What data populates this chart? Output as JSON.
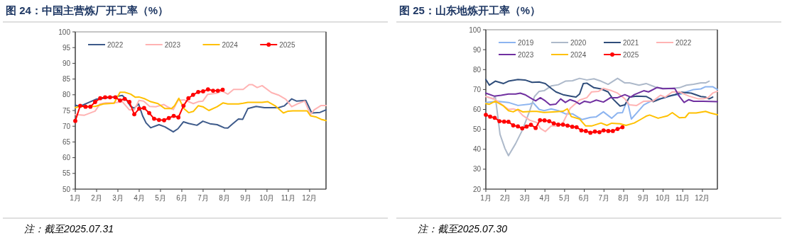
{
  "chart_data": [
    {
      "type": "line",
      "title": "图 24：中国主营炼厂开工率（%）",
      "legend": "top",
      "xlim": [
        1,
        12.77
      ],
      "ylim": [
        50,
        100
      ],
      "xticks": [
        {
          "value": 1,
          "label": "1月"
        },
        {
          "value": 2,
          "label": "2月"
        },
        {
          "value": 3,
          "label": "3月"
        },
        {
          "value": 4,
          "label": "4月"
        },
        {
          "value": 5,
          "label": "5月"
        },
        {
          "value": 6,
          "label": "6月"
        },
        {
          "value": 7,
          "label": "7月"
        },
        {
          "value": 8,
          "label": "8月"
        },
        {
          "value": 9,
          "label": "9月"
        },
        {
          "value": 10,
          "label": "10月"
        },
        {
          "value": 11,
          "label": "11月"
        },
        {
          "value": 12,
          "label": "12月"
        }
      ],
      "yticks": [
        50,
        55,
        60,
        65,
        70,
        75,
        80,
        85,
        90,
        95,
        100
      ],
      "annotations": [
        "注：截至2025.07.31"
      ],
      "series": [
        {
          "name": "2022",
          "color": "#3d5a8a",
          "x": [
            1.0,
            1.21,
            1.71,
            1.99,
            2.32,
            2.77,
            3.21,
            3.38,
            3.6,
            3.77,
            3.97,
            4.16,
            4.32,
            4.54,
            4.93,
            5.21,
            5.6,
            5.82,
            6.08,
            6.32,
            6.71,
            6.99,
            7.32,
            7.66,
            7.99,
            8.16,
            8.38,
            8.66,
            8.86,
            9.1,
            9.49,
            9.88,
            10.54,
            10.82,
            11.16,
            11.38,
            11.82,
            12.1,
            12.49,
            12.77
          ],
          "values": [
            76.7,
            76.3,
            77.8,
            78.6,
            78.9,
            79.3,
            79.8,
            78.6,
            76.3,
            75.7,
            77.1,
            73.3,
            71.1,
            69.5,
            70.5,
            69.8,
            68.2,
            69.2,
            71.4,
            70.9,
            70.3,
            71.6,
            70.8,
            70.5,
            69.5,
            69.4,
            70.7,
            72.3,
            72.2,
            75.6,
            76.3,
            75.9,
            75.9,
            76.5,
            78.7,
            78.0,
            78.2,
            74.2,
            74.4,
            75.2
          ]
        },
        {
          "name": "2023",
          "color": "#ffb3b3",
          "x": [
            1.0,
            1.43,
            1.93,
            2.16,
            2.43,
            2.82,
            3.21,
            3.54,
            3.77,
            3.99,
            4.21,
            4.49,
            4.77,
            5.16,
            5.32,
            5.6,
            5.82,
            6.1,
            6.54,
            6.77,
            6.99,
            7.21,
            7.66,
            7.88,
            8.16,
            8.43,
            8.88,
            9.16,
            9.32,
            9.54,
            9.77,
            10.21,
            10.54,
            10.88,
            11.16,
            11.43,
            11.77,
            12.04,
            12.21,
            12.54,
            12.77
          ],
          "values": [
            73.7,
            73.5,
            74.8,
            77.1,
            77.4,
            77.4,
            77.8,
            75.2,
            75.2,
            78.2,
            78.0,
            76.3,
            76.2,
            76.9,
            76.2,
            75.3,
            78.2,
            78.4,
            77.2,
            77.8,
            78.0,
            80.1,
            80.5,
            81.2,
            80.2,
            81.7,
            81.7,
            83.2,
            83.2,
            82.3,
            82.9,
            80.7,
            79.9,
            78.6,
            76.2,
            77.1,
            78.0,
            73.7,
            75.2,
            76.6,
            76.6
          ]
        },
        {
          "name": "2024",
          "color": "#ffc000",
          "x": [
            1.0,
            1.21,
            1.93,
            2.32,
            2.82,
            3.1,
            3.32,
            3.6,
            3.82,
            3.99,
            4.27,
            4.54,
            4.88,
            5.21,
            5.52,
            5.66,
            5.86,
            6.1,
            6.32,
            6.54,
            6.77,
            6.99,
            7.27,
            7.66,
            7.93,
            8.16,
            8.66,
            8.88,
            9.1,
            9.77,
            10.04,
            10.38,
            10.77,
            10.99,
            11.21,
            11.88,
            12.04,
            12.32,
            12.54,
            12.77
          ],
          "values": [
            75.9,
            76.3,
            76.3,
            77.1,
            77.3,
            80.8,
            80.8,
            80.2,
            79.2,
            79.3,
            78.7,
            77.8,
            77.2,
            75.6,
            75.6,
            76.5,
            78.9,
            75.6,
            74.3,
            74.7,
            76.5,
            76.2,
            75.0,
            76.2,
            77.4,
            77.1,
            77.1,
            77.3,
            77.6,
            77.6,
            77.8,
            76.5,
            74.2,
            74.8,
            74.9,
            74.9,
            73.3,
            72.9,
            72.2,
            71.8
          ]
        },
        {
          "name": "2025",
          "color": "#ff0000",
          "marker": "circle",
          "x": [
            1.0,
            1.23,
            1.48,
            1.71,
            1.93,
            2.17,
            2.4,
            2.63,
            2.88,
            3.1,
            3.32,
            3.54,
            3.77,
            4.0,
            4.23,
            4.47,
            4.7,
            4.93,
            5.17,
            5.39,
            5.62,
            5.84,
            6.08,
            6.31,
            6.53,
            6.77,
            7.0,
            7.23,
            7.47,
            7.69,
            7.92
          ],
          "values": [
            71.7,
            76.5,
            76.2,
            76.2,
            77.7,
            78.9,
            79.2,
            79.2,
            79.2,
            78.2,
            78.7,
            77.7,
            73.8,
            75.6,
            75.8,
            74.2,
            72.4,
            72.0,
            71.9,
            72.6,
            73.3,
            72.8,
            76.5,
            78.9,
            80.0,
            80.9,
            81.1,
            81.7,
            81.3,
            81.3,
            81.6
          ]
        }
      ]
    },
    {
      "type": "line",
      "title": "图 25：山东地炼开工率（%）",
      "legend": "top",
      "xlim": [
        1,
        12.76
      ],
      "ylim": [
        20,
        100
      ],
      "xticks": [
        {
          "value": 1,
          "label": "1月"
        },
        {
          "value": 2,
          "label": "2月"
        },
        {
          "value": 3,
          "label": "3月"
        },
        {
          "value": 4,
          "label": "4月"
        },
        {
          "value": 5,
          "label": "5月"
        },
        {
          "value": 6,
          "label": "6月"
        },
        {
          "value": 7,
          "label": "7月"
        },
        {
          "value": 8,
          "label": "8月"
        },
        {
          "value": 9,
          "label": "9月"
        },
        {
          "value": 10,
          "label": "10月"
        },
        {
          "value": 11,
          "label": "11月"
        },
        {
          "value": 12,
          "label": "12月"
        }
      ],
      "yticks": [
        20,
        30,
        40,
        50,
        60,
        70,
        80,
        90,
        100
      ],
      "annotations": [
        "注：截至2025.07.30"
      ],
      "series": [
        {
          "name": "2019",
          "color": "#8cb4f0",
          "x": [
            1.0,
            1.6,
            2.15,
            2.63,
            3.23,
            3.41,
            3.71,
            3.96,
            4.32,
            4.68,
            5.04,
            5.4,
            5.89,
            6.31,
            6.61,
            6.97,
            7.39,
            7.69,
            7.94,
            8.18,
            8.39,
            8.66,
            9.02,
            9.38,
            9.75,
            10.11,
            10.47,
            10.83,
            11.19,
            11.55,
            11.92,
            12.16,
            12.52,
            12.76
          ],
          "values": [
            63.5,
            64.1,
            63.5,
            62.0,
            62.7,
            63.3,
            60.0,
            59.4,
            60.3,
            59.4,
            57.8,
            57.8,
            54.9,
            56.0,
            56.3,
            58.8,
            55.6,
            58.2,
            58.4,
            64.7,
            55.2,
            58.2,
            62.3,
            64.1,
            65.3,
            65.9,
            67.1,
            67.4,
            68.8,
            70.0,
            70.3,
            71.4,
            71.4,
            70.0
          ]
        },
        {
          "name": "2020",
          "color": "#adb9ca",
          "x": [
            1.0,
            1.36,
            1.48,
            1.72,
            1.97,
            2.15,
            2.51,
            2.87,
            3.23,
            3.47,
            3.71,
            3.96,
            4.32,
            4.68,
            5.04,
            5.4,
            5.76,
            6.13,
            6.49,
            6.85,
            7.21,
            7.69,
            8.06,
            8.3,
            8.78,
            9.14,
            9.62,
            9.99,
            10.47,
            10.83,
            11.19,
            11.55,
            11.92,
            12.16,
            12.34
          ],
          "values": [
            66.5,
            65.3,
            66.5,
            47.5,
            40.4,
            36.8,
            42.8,
            49.9,
            59.4,
            66.5,
            69.1,
            69.4,
            71.8,
            72.4,
            74.2,
            74.4,
            75.6,
            74.8,
            75.4,
            74.2,
            72.6,
            75.6,
            73.3,
            73.3,
            72.2,
            73.0,
            71.2,
            70.6,
            70.6,
            70.9,
            72.2,
            72.6,
            73.3,
            73.3,
            74.2
          ]
        },
        {
          "name": "2021",
          "color": "#2f4d7a",
          "x": [
            1.0,
            1.18,
            1.48,
            1.9,
            2.15,
            2.63,
            2.99,
            3.35,
            3.71,
            4.02,
            4.32,
            4.56,
            4.92,
            5.4,
            5.58,
            5.76,
            5.95,
            6.13,
            6.49,
            6.85,
            7.21,
            7.45,
            7.82,
            8.06,
            8.3,
            8.66,
            9.14,
            9.38,
            9.5,
            9.87,
            10.23,
            10.59,
            10.95,
            11.43,
            11.92,
            12.16,
            12.34,
            12.52
          ],
          "values": [
            75.0,
            72.2,
            74.2,
            73.0,
            74.2,
            75.0,
            74.8,
            73.6,
            73.8,
            73.0,
            70.6,
            68.8,
            67.4,
            66.5,
            66.2,
            67.7,
            73.0,
            73.2,
            70.9,
            70.3,
            68.8,
            65.3,
            61.7,
            62.3,
            66.2,
            66.7,
            66.5,
            65.3,
            63.9,
            65.3,
            66.5,
            67.4,
            68.6,
            68.2,
            66.5,
            66.2,
            65.3,
            66.2
          ]
        },
        {
          "name": "2022",
          "color": "#ffb3b3",
          "x": [
            1.0,
            1.36,
            1.6,
            2.15,
            2.39,
            2.63,
            2.87,
            3.23,
            3.59,
            3.77,
            4.02,
            4.32,
            4.68,
            4.92,
            5.28,
            5.76,
            6.13,
            6.37,
            6.73,
            6.97,
            7.39,
            7.69,
            8.06,
            8.3,
            8.66,
            9.02,
            9.5,
            9.87,
            10.11,
            10.47,
            10.83,
            11.31,
            11.8,
            12.04,
            12.28,
            12.52,
            12.76
          ],
          "values": [
            66.5,
            65.5,
            64.1,
            60.0,
            60.3,
            59.6,
            57.0,
            54.6,
            53.4,
            50.5,
            48.9,
            51.7,
            51.7,
            53.4,
            60.5,
            64.7,
            65.9,
            68.8,
            69.1,
            70.6,
            69.4,
            68.2,
            65.3,
            62.3,
            62.0,
            64.1,
            64.3,
            67.1,
            66.2,
            68.8,
            68.8,
            66.7,
            65.3,
            65.3,
            65.9,
            68.2,
            69.1
          ]
        },
        {
          "name": "2023",
          "color": "#7030a0",
          "x": [
            1.0,
            1.42,
            1.78,
            2.15,
            2.51,
            2.75,
            2.99,
            3.35,
            3.53,
            3.77,
            4.02,
            4.26,
            4.56,
            4.8,
            5.04,
            5.28,
            5.52,
            5.76,
            6.01,
            6.31,
            6.61,
            6.97,
            7.33,
            7.69,
            8.06,
            8.36,
            8.54,
            9.02,
            9.26,
            9.69,
            9.99,
            10.59,
            10.83,
            11.07,
            11.31,
            11.55,
            12.04,
            12.76
          ],
          "values": [
            68.2,
            66.7,
            67.1,
            67.7,
            67.7,
            68.2,
            67.4,
            65.3,
            64.3,
            65.9,
            64.3,
            62.3,
            62.7,
            65.3,
            63.5,
            64.9,
            64.1,
            62.7,
            64.1,
            63.5,
            64.7,
            63.7,
            65.9,
            65.9,
            67.4,
            66.2,
            67.4,
            69.4,
            68.8,
            71.0,
            70.4,
            70.6,
            66.5,
            63.5,
            64.9,
            64.1,
            64.1,
            63.9
          ]
        },
        {
          "name": "2024",
          "color": "#ffc000",
          "x": [
            1.0,
            1.18,
            1.48,
            1.9,
            2.15,
            2.39,
            2.63,
            2.87,
            3.35,
            3.59,
            3.96,
            4.44,
            4.92,
            5.14,
            5.34,
            5.76,
            6.07,
            6.37,
            6.85,
            7.15,
            7.39,
            7.82,
            8.12,
            8.54,
            8.9,
            9.14,
            9.32,
            9.75,
            10.23,
            10.47,
            10.83,
            11.13,
            11.31,
            11.68,
            12.16,
            12.4,
            12.76
          ],
          "values": [
            62.9,
            62.6,
            64.1,
            61.7,
            59.4,
            58.8,
            60.0,
            58.8,
            59.0,
            59.0,
            58.5,
            58.8,
            59.1,
            60.3,
            56.4,
            55.2,
            51.7,
            51.7,
            53.2,
            52.0,
            53.1,
            52.8,
            52.0,
            53.2,
            55.2,
            56.6,
            57.2,
            55.6,
            56.8,
            58.4,
            55.8,
            56.0,
            58.2,
            58.2,
            59.0,
            58.2,
            57.3
          ]
        },
        {
          "name": "2025",
          "color": "#ff0000",
          "marker": "circle",
          "x": [
            1.0,
            1.22,
            1.45,
            1.69,
            1.93,
            2.15,
            2.39,
            2.63,
            2.85,
            3.07,
            3.29,
            3.53,
            3.75,
            3.98,
            4.22,
            4.45,
            4.68,
            4.92,
            5.15,
            5.39,
            5.61,
            5.85,
            6.08,
            6.31,
            6.54,
            6.77,
            6.98,
            7.22,
            7.45,
            7.69,
            7.94
          ],
          "values": [
            57.3,
            56.4,
            55.8,
            54.1,
            53.9,
            53.8,
            52.0,
            51.5,
            50.5,
            51.4,
            52.3,
            50.7,
            54.6,
            54.5,
            54.1,
            53.0,
            52.4,
            52.4,
            51.9,
            51.3,
            51.1,
            49.5,
            49.2,
            48.3,
            48.9,
            48.6,
            49.5,
            49.2,
            49.2,
            50.2,
            51.1
          ]
        }
      ]
    }
  ]
}
